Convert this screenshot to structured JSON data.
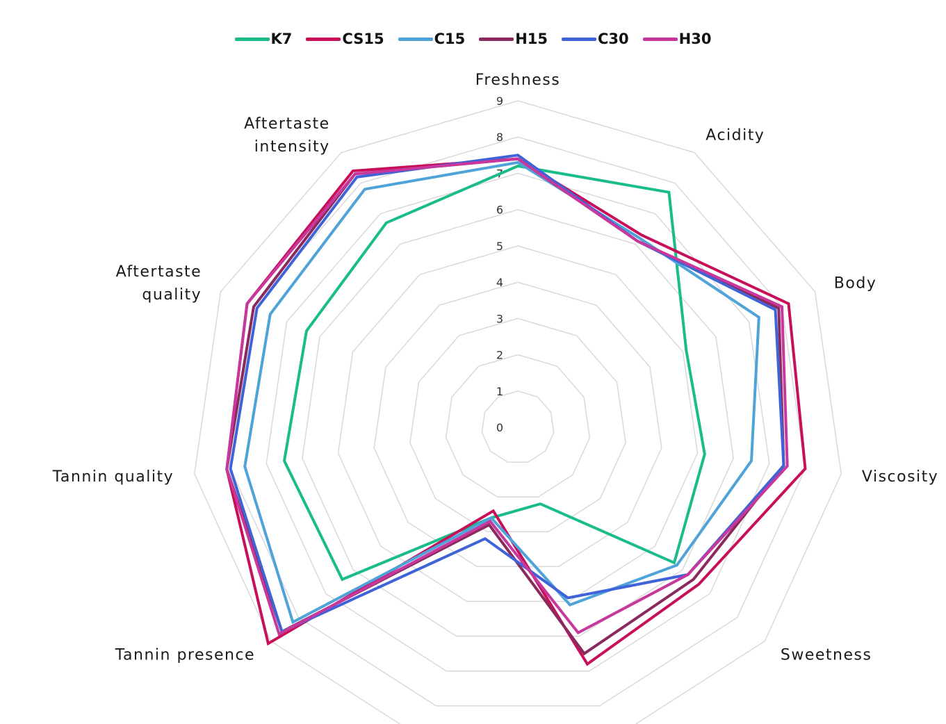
{
  "chart_data": {
    "type": "radar",
    "axes": [
      {
        "label": "Freshness"
      },
      {
        "label": "Acidity"
      },
      {
        "label": "Body"
      },
      {
        "label": "Viscosity"
      },
      {
        "label": "Sweetness"
      },
      {
        "label": ""
      },
      {
        "label": ""
      },
      {
        "label": "Tannin presence"
      },
      {
        "label": "Tannin quality"
      },
      {
        "label": "Aftertaste quality"
      },
      {
        "label": "Aftertaste intensity"
      }
    ],
    "r_ticks": [
      "0",
      "1",
      "2",
      "3",
      "4",
      "5",
      "6",
      "7",
      "8",
      "9"
    ],
    "r_range": [
      0,
      9
    ],
    "grid": true,
    "legend_position": "top",
    "series": [
      {
        "name": "K7",
        "color": "#1abc8c",
        "values": [
          7.2,
          7.7,
          5.1,
          5.2,
          5.7,
          2.2,
          2.6,
          6.4,
          6.5,
          6.4,
          6.7
        ]
      },
      {
        "name": "CS15",
        "color": "#c8105a",
        "values": [
          7.4,
          6.3,
          8.2,
          8.0,
          6.6,
          6.8,
          2.4,
          9.1,
          8.1,
          8.2,
          8.4
        ]
      },
      {
        "name": "C15",
        "color": "#4fa3d8",
        "values": [
          7.3,
          6.2,
          7.3,
          6.5,
          5.8,
          5.1,
          2.6,
          8.2,
          7.6,
          7.5,
          7.8
        ]
      },
      {
        "name": "H15",
        "color": "#8b2a5e",
        "values": [
          7.4,
          6.1,
          7.9,
          7.4,
          6.4,
          6.5,
          2.8,
          8.6,
          8.1,
          8.0,
          8.3
        ]
      },
      {
        "name": "C30",
        "color": "#4064d8",
        "values": [
          7.5,
          6.1,
          7.8,
          7.4,
          6.2,
          4.9,
          3.2,
          8.6,
          8.0,
          7.9,
          8.2
        ]
      },
      {
        "name": "H30",
        "color": "#c8379c",
        "values": [
          7.4,
          6.1,
          8.0,
          7.5,
          6.2,
          5.9,
          2.7,
          8.7,
          8.1,
          8.2,
          8.3
        ]
      }
    ]
  }
}
